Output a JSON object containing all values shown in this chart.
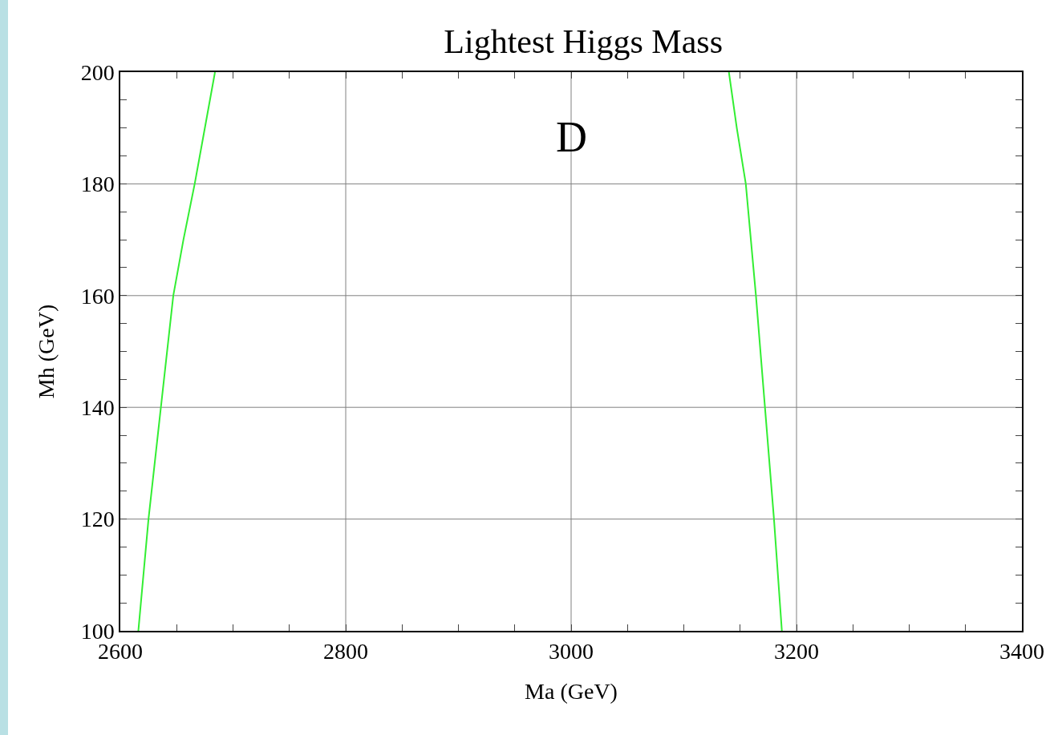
{
  "chart_data": {
    "type": "line",
    "title": "Lightest Higgs Mass",
    "xlabel": "Ma (GeV)",
    "ylabel": "Mh (GeV)",
    "annotations": [
      "D"
    ],
    "series": [
      {
        "color": "#33ee33",
        "x": [
          2616,
          2625,
          2636,
          2647,
          2656,
          2666,
          2675,
          2684
        ],
        "values": [
          100,
          120,
          140,
          160,
          170,
          180,
          190,
          200
        ]
      },
      {
        "color": "#33ee33",
        "x": [
          3140,
          3147,
          3155,
          3164,
          3172,
          3180,
          3187
        ],
        "values": [
          200,
          190,
          180,
          160,
          140,
          120,
          100
        ]
      }
    ],
    "xlim": [
      2600,
      3400
    ],
    "ylim": [
      100,
      200
    ],
    "xticks": [
      2600,
      {
        "value": 2650,
        "label": null
      },
      {
        "value": 2700,
        "label": null
      },
      {
        "value": 2750,
        "label": null
      },
      2800,
      {
        "value": 2850,
        "label": null
      },
      {
        "value": 2900,
        "label": null
      },
      {
        "value": 2950,
        "label": null
      },
      3000,
      {
        "value": 3050,
        "label": null
      },
      {
        "value": 3100,
        "label": null
      },
      {
        "value": 3150,
        "label": null
      },
      3200,
      {
        "value": 3250,
        "label": null
      },
      {
        "value": 3300,
        "label": null
      },
      {
        "value": 3350,
        "label": null
      },
      3400
    ],
    "yticks": [
      100,
      {
        "value": 105,
        "label": null
      },
      {
        "value": 110,
        "label": null
      },
      {
        "value": 115,
        "label": null
      },
      120,
      {
        "value": 125,
        "label": null
      },
      {
        "value": 130,
        "label": null
      },
      {
        "value": 135,
        "label": null
      },
      140,
      {
        "value": 145,
        "label": null
      },
      {
        "value": 150,
        "label": null
      },
      {
        "value": 155,
        "label": null
      },
      160,
      {
        "value": 165,
        "label": null
      },
      {
        "value": 170,
        "label": null
      },
      {
        "value": 175,
        "label": null
      },
      180,
      {
        "value": 185,
        "label": null
      },
      {
        "value": 190,
        "label": null
      },
      {
        "value": 195,
        "label": null
      },
      200
    ],
    "grid": true
  }
}
